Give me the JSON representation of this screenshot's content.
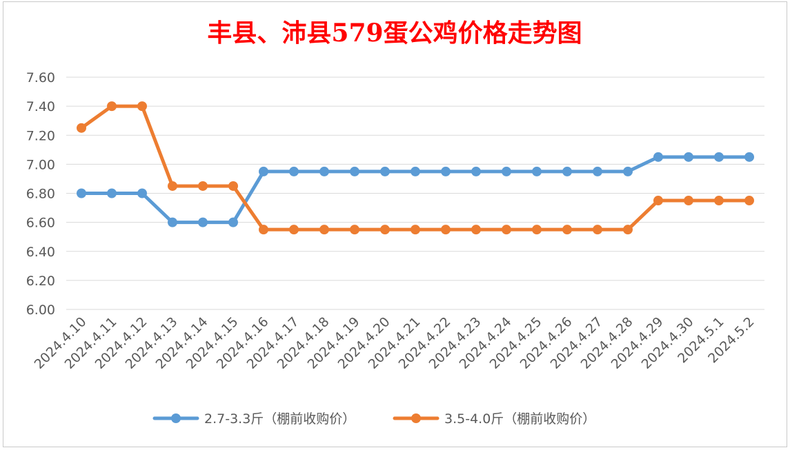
{
  "chart_data": {
    "type": "line",
    "title": "丰县、沛县579蛋公鸡价格走势图",
    "xlabel": "",
    "ylabel": "",
    "categories": [
      "2024.4.10",
      "2024.4.11",
      "2024.4.12",
      "2024.4.13",
      "2024.4.14",
      "2024.4.15",
      "2024.4.16",
      "2024.4.17",
      "2024.4.18",
      "2024.4.19",
      "2024.4.20",
      "2024.4.21",
      "2024.4.22",
      "2024.4.23",
      "2024.4.24",
      "2024.4.25",
      "2024.4.26",
      "2024.4.27",
      "2024.4.28",
      "2024.4.29",
      "2024.4.30",
      "2024.5.1",
      "2024.5.2"
    ],
    "y_ticks": [
      "6.00",
      "6.20",
      "6.40",
      "6.60",
      "6.80",
      "7.00",
      "7.20",
      "7.40",
      "7.60"
    ],
    "ylim": [
      6.0,
      7.6
    ],
    "grid": true,
    "legend_position": "bottom",
    "series": [
      {
        "name": "2.7-3.3斤（棚前收购价）",
        "color": "#5b9bd5",
        "values": [
          6.8,
          6.8,
          6.8,
          6.6,
          6.6,
          6.6,
          6.95,
          6.95,
          6.95,
          6.95,
          6.95,
          6.95,
          6.95,
          6.95,
          6.95,
          6.95,
          6.95,
          6.95,
          6.95,
          7.05,
          7.05,
          7.05,
          7.05
        ]
      },
      {
        "name": "3.5-4.0斤（棚前收购价）",
        "color": "#ed7d31",
        "values": [
          7.25,
          7.4,
          7.4,
          6.85,
          6.85,
          6.85,
          6.55,
          6.55,
          6.55,
          6.55,
          6.55,
          6.55,
          6.55,
          6.55,
          6.55,
          6.55,
          6.55,
          6.55,
          6.55,
          6.75,
          6.75,
          6.75,
          6.75
        ]
      }
    ]
  }
}
